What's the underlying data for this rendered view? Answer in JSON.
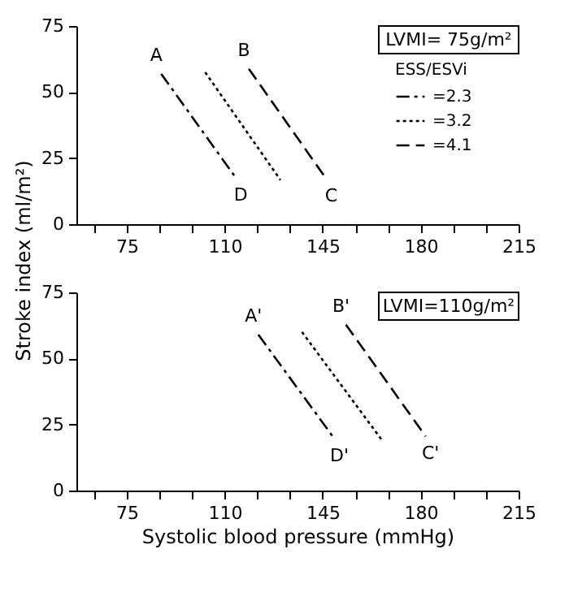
{
  "chart_data": [
    {
      "type": "line",
      "ylabel": "Stroke index (ml/m²)",
      "legend_title": "ESS/ESVi",
      "legend": "top right",
      "xlim": [
        57,
        215
      ],
      "ylim": [
        0,
        75
      ],
      "xticks": [
        {
          "value": 63.33,
          "label": null
        },
        75,
        {
          "value": 86.67,
          "label": null
        },
        {
          "value": 98.33,
          "label": null
        },
        110,
        {
          "value": 121.67,
          "label": null
        },
        {
          "value": 133.33,
          "label": null
        },
        145,
        {
          "value": 156.67,
          "label": null
        },
        {
          "value": 168.33,
          "label": null
        },
        180,
        {
          "value": 191.67,
          "label": null
        },
        {
          "value": 203.33,
          "label": null
        },
        215
      ],
      "yticks": [
        0,
        25,
        50,
        75
      ],
      "grid": false,
      "series": [
        {
          "name": "=2.3",
          "color": "#000000",
          "line_style": "dashdot",
          "x": [
            87.3,
            114
          ],
          "values": [
            56.9,
            17.5
          ]
        },
        {
          "name": "=3.2",
          "color": "#000000",
          "line_style": "dotted",
          "x": [
            103,
            129.9
          ],
          "values": [
            57.5,
            16.7
          ]
        },
        {
          "name": "=4.1",
          "color": "#000000",
          "line_style": "dashed",
          "x": [
            118.6,
            146.3
          ],
          "values": [
            58.8,
            17.1
          ]
        }
      ],
      "annotations": [
        "LVMI= 75g/m²",
        {
          "text": "A",
          "x": 87.3,
          "y": 56.9
        },
        {
          "text": "B",
          "x": 118.6,
          "y": 58.8
        },
        {
          "text": "D",
          "x": 114,
          "y": 17.5
        },
        {
          "text": "C",
          "x": 146.3,
          "y": 17.1
        }
      ]
    },
    {
      "type": "line",
      "xlabel": "Systolic blood pressure (mmHg)",
      "legend": false,
      "xlim": [
        57,
        215
      ],
      "ylim": [
        0,
        75
      ],
      "xticks": [
        {
          "value": 63.33,
          "label": null
        },
        75,
        {
          "value": 86.67,
          "label": null
        },
        {
          "value": 98.33,
          "label": null
        },
        110,
        {
          "value": 121.67,
          "label": null
        },
        {
          "value": 133.33,
          "label": null
        },
        145,
        {
          "value": 156.67,
          "label": null
        },
        {
          "value": 168.33,
          "label": null
        },
        180,
        {
          "value": 191.67,
          "label": null
        },
        {
          "value": 203.33,
          "label": null
        },
        215
      ],
      "yticks": [
        0,
        25,
        50,
        75
      ],
      "grid": false,
      "series": [
        {
          "color": "#000000",
          "line_style": "dashdot",
          "x": [
            122,
            149.2
          ],
          "values": [
            59,
            19.6
          ]
        },
        {
          "color": "#000000",
          "line_style": "dotted",
          "x": [
            137.6,
            166.5
          ],
          "values": [
            60,
            18.6
          ]
        },
        {
          "color": "#000000",
          "line_style": "dashed",
          "x": [
            153.3,
            181.8
          ],
          "values": [
            62.8,
            20.5
          ]
        }
      ],
      "annotations": [
        "LVMI=110g/m²",
        {
          "text": "A'",
          "x": 122,
          "y": 59
        },
        {
          "text": "B'",
          "x": 153.3,
          "y": 62.8
        },
        {
          "text": "D'",
          "x": 149.2,
          "y": 19.6
        },
        {
          "text": "C'",
          "x": 181.8,
          "y": 20.5
        }
      ]
    }
  ]
}
